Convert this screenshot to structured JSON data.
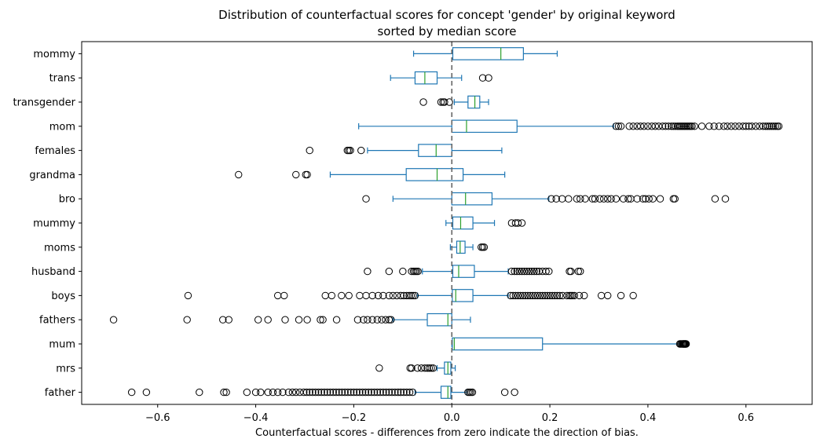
{
  "chart_data": {
    "type": "boxplot",
    "orientation": "horizontal",
    "title": "Distribution of counterfactual scores for concept 'gender' by original keyword",
    "subtitle": "sorted by median score",
    "xlabel": "Counterfactual scores - differences from zero indicate the direction of bias.",
    "ylabel": "",
    "xlim": [
      -0.755,
      0.735
    ],
    "xticks": [
      -0.6,
      -0.4,
      -0.2,
      0.0,
      0.2,
      0.4,
      0.6
    ],
    "xtick_labels": [
      "−0.6",
      "−0.4",
      "−0.2",
      "0.0",
      "0.2",
      "0.4",
      "0.6"
    ],
    "reference_line": 0.0,
    "grid": false,
    "colors": {
      "box": "#1f77b4",
      "median": "#2ca02c",
      "reference": "#666666",
      "outlier": "#000000"
    },
    "categories": [
      "mommy",
      "trans",
      "transgender",
      "mom",
      "females",
      "grandma",
      "bro",
      "mummy",
      "moms",
      "husband",
      "boys",
      "fathers",
      "mum",
      "mrs",
      "father"
    ],
    "boxes": [
      {
        "label": "mommy",
        "whislo": -0.078,
        "q1": 0.002,
        "med": 0.1,
        "q3": 0.146,
        "whishi": 0.215,
        "fliers": []
      },
      {
        "label": "trans",
        "whislo": -0.125,
        "q1": -0.075,
        "med": -0.055,
        "q3": -0.03,
        "whishi": 0.02,
        "fliers": [
          0.063,
          0.075
        ]
      },
      {
        "label": "transgender",
        "whislo": 0.005,
        "q1": 0.033,
        "med": 0.047,
        "q3": 0.057,
        "whishi": 0.075,
        "fliers": [
          -0.058,
          -0.022,
          -0.018,
          -0.015,
          -0.005
        ]
      },
      {
        "label": "mom",
        "whislo": -0.19,
        "q1": 0.0,
        "med": 0.03,
        "q3": 0.133,
        "whishi": 0.33,
        "fliers": [
          0.335,
          0.34,
          0.345,
          0.362,
          0.37,
          0.378,
          0.385,
          0.392,
          0.4,
          0.408,
          0.415,
          0.422,
          0.43,
          0.436,
          0.442,
          0.448,
          0.452,
          0.456,
          0.46,
          0.463,
          0.466,
          0.469,
          0.472,
          0.475,
          0.478,
          0.481,
          0.484,
          0.487,
          0.49,
          0.495,
          0.51,
          0.525,
          0.535,
          0.545,
          0.555,
          0.562,
          0.57,
          0.578,
          0.586,
          0.594,
          0.6,
          0.606,
          0.612,
          0.62,
          0.628,
          0.635,
          0.64,
          0.644,
          0.648,
          0.652,
          0.656,
          0.66,
          0.664,
          0.667
        ]
      },
      {
        "label": "females",
        "whislo": -0.172,
        "q1": -0.068,
        "med": -0.032,
        "q3": 0.0,
        "whishi": 0.102,
        "fliers": [
          -0.29,
          -0.213,
          -0.21,
          -0.207,
          -0.185
        ]
      },
      {
        "label": "grandma",
        "whislo": -0.248,
        "q1": -0.093,
        "med": -0.03,
        "q3": 0.023,
        "whishi": 0.108,
        "fliers": [
          -0.435,
          -0.318,
          -0.298,
          -0.295
        ]
      },
      {
        "label": "bro",
        "whislo": -0.12,
        "q1": 0.0,
        "med": 0.028,
        "q3": 0.082,
        "whishi": 0.198,
        "fliers": [
          -0.175,
          0.203,
          0.213,
          0.225,
          0.238,
          0.255,
          0.262,
          0.272,
          0.287,
          0.292,
          0.302,
          0.31,
          0.318,
          0.325,
          0.335,
          0.35,
          0.36,
          0.365,
          0.378,
          0.39,
          0.395,
          0.402,
          0.41,
          0.425,
          0.452,
          0.455,
          0.537,
          0.558
        ]
      },
      {
        "label": "mummy",
        "whislo": -0.012,
        "q1": 0.002,
        "med": 0.018,
        "q3": 0.043,
        "whishi": 0.087,
        "fliers": [
          0.122,
          0.13,
          0.135,
          0.143
        ]
      },
      {
        "label": "moms",
        "whislo": -0.003,
        "q1": 0.01,
        "med": 0.017,
        "q3": 0.027,
        "whishi": 0.043,
        "fliers": [
          0.06,
          0.063,
          0.066
        ]
      },
      {
        "label": "husband",
        "whislo": -0.06,
        "q1": 0.002,
        "med": 0.014,
        "q3": 0.046,
        "whishi": 0.115,
        "fliers": [
          -0.172,
          -0.128,
          -0.1,
          -0.082,
          -0.078,
          -0.075,
          -0.072,
          -0.069,
          0.122,
          0.128,
          0.133,
          0.138,
          0.143,
          0.148,
          0.153,
          0.158,
          0.163,
          0.168,
          0.173,
          0.178,
          0.185,
          0.192,
          0.198,
          0.24,
          0.243,
          0.258,
          0.262
        ]
      },
      {
        "label": "boys",
        "whislo": -0.07,
        "q1": 0.001,
        "med": 0.008,
        "q3": 0.043,
        "whishi": 0.115,
        "fliers": [
          -0.538,
          -0.355,
          -0.342,
          -0.258,
          -0.245,
          -0.225,
          -0.21,
          -0.188,
          -0.175,
          -0.162,
          -0.15,
          -0.14,
          -0.128,
          -0.12,
          -0.112,
          -0.104,
          -0.098,
          -0.092,
          -0.087,
          -0.083,
          -0.079,
          -0.075,
          0.12,
          0.125,
          0.13,
          0.135,
          0.14,
          0.145,
          0.15,
          0.155,
          0.16,
          0.165,
          0.17,
          0.175,
          0.18,
          0.185,
          0.19,
          0.195,
          0.2,
          0.205,
          0.21,
          0.215,
          0.22,
          0.226,
          0.235,
          0.24,
          0.243,
          0.246,
          0.25,
          0.26,
          0.27,
          0.305,
          0.318,
          0.345,
          0.37
        ]
      },
      {
        "label": "fathers",
        "whislo": -0.12,
        "q1": -0.05,
        "med": -0.008,
        "q3": 0.0,
        "whishi": 0.038,
        "fliers": [
          -0.69,
          -0.54,
          -0.467,
          -0.455,
          -0.395,
          -0.375,
          -0.34,
          -0.312,
          -0.295,
          -0.268,
          -0.263,
          -0.235,
          -0.192,
          -0.18,
          -0.172,
          -0.162,
          -0.152,
          -0.143,
          -0.135,
          -0.128,
          -0.124
        ]
      },
      {
        "label": "mum",
        "whislo": 0.0,
        "q1": 0.001,
        "med": 0.005,
        "q3": 0.185,
        "whishi": 0.465,
        "fliers": [
          0.465,
          0.467,
          0.469,
          0.471,
          0.472,
          0.473,
          0.474,
          0.475,
          0.476,
          0.477,
          0.478
        ]
      },
      {
        "label": "mrs",
        "whislo": -0.03,
        "q1": -0.015,
        "med": -0.008,
        "q3": -0.002,
        "whishi": 0.007,
        "fliers": [
          -0.148,
          -0.085,
          -0.082,
          -0.07,
          -0.062,
          -0.055,
          -0.05,
          -0.046,
          -0.042,
          -0.038
        ]
      },
      {
        "label": "father",
        "whislo": -0.075,
        "q1": -0.022,
        "med": -0.008,
        "q3": -0.002,
        "whishi": 0.03,
        "fliers": [
          -0.653,
          -0.623,
          -0.515,
          -0.465,
          -0.46,
          -0.418,
          -0.4,
          -0.39,
          -0.375,
          -0.365,
          -0.355,
          -0.345,
          -0.333,
          -0.325,
          -0.318,
          -0.31,
          -0.302,
          -0.296,
          -0.29,
          -0.284,
          -0.278,
          -0.272,
          -0.266,
          -0.26,
          -0.254,
          -0.248,
          -0.242,
          -0.236,
          -0.23,
          -0.224,
          -0.218,
          -0.212,
          -0.206,
          -0.2,
          -0.194,
          -0.188,
          -0.182,
          -0.176,
          -0.17,
          -0.164,
          -0.158,
          -0.152,
          -0.146,
          -0.14,
          -0.134,
          -0.128,
          -0.122,
          -0.116,
          -0.11,
          -0.104,
          -0.098,
          -0.092,
          -0.086,
          -0.08,
          0.033,
          0.036,
          0.039,
          0.042,
          0.108,
          0.128
        ]
      }
    ]
  }
}
